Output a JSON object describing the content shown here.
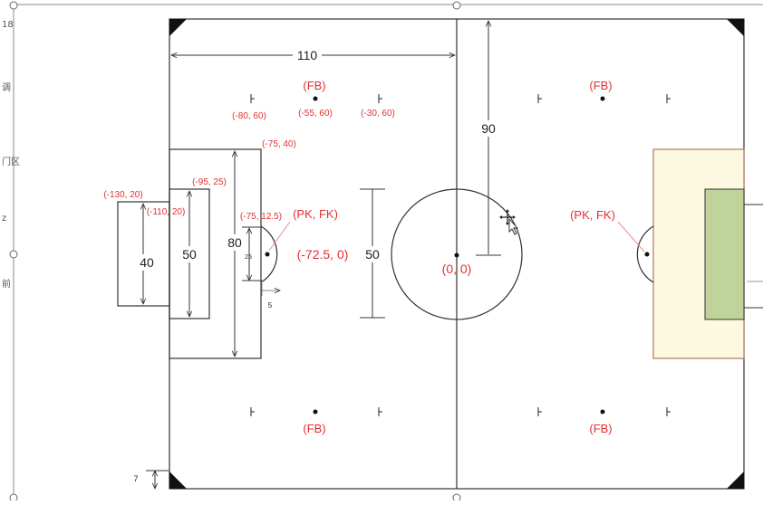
{
  "ruler": {
    "marks": [
      "18",
      "调",
      "门区",
      "z",
      "前"
    ]
  },
  "dimensions": {
    "d110": "110",
    "d90": "90",
    "d80": "80",
    "d50_box": "50",
    "d40": "40",
    "d50_mid": "50",
    "d25": "25",
    "d5": "5",
    "d7": "7"
  },
  "labels": {
    "fb_tl": "(FB)",
    "fb_tr": "(FB)",
    "fb_bl": "(FB)",
    "fb_br": "(FB)",
    "pk_left": "(PK, FK)",
    "pk_right": "(PK, FK)",
    "center": "(0, 0)",
    "penalty_spot": "(-72.5, 0)",
    "c_80_60": "(-80, 60)",
    "c_55_60": "(-55, 60)",
    "c_30_60": "(-30, 60)",
    "c_75_40": "(-75, 40)",
    "c_95_25": "(-95, 25)",
    "c_130_20": "(-130, 20)",
    "c_110_20": "(-110, 20)",
    "c_75_12": "(-75, 12.5)"
  },
  "colors": {
    "line": "#333333",
    "annotation": "#e03030",
    "penalty_fill": "#fdf8e0",
    "goal_area_fill": "#bfd39a",
    "field_bg": "#ffffff"
  }
}
